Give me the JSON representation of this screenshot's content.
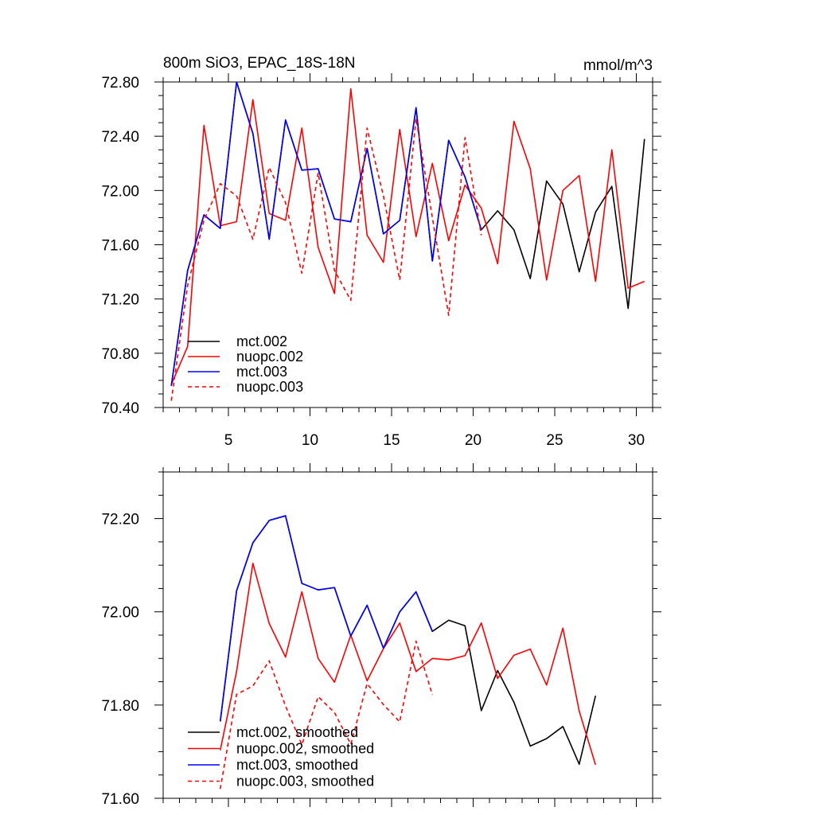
{
  "chart_data": [
    {
      "type": "line",
      "title": "800m SiO3, EPAC_18S-18N",
      "units": "mmol/m^3",
      "xlabel": "",
      "ylabel": "",
      "xlim": [
        1,
        31
      ],
      "ylim": [
        70.4,
        72.8
      ],
      "xticks": [
        5,
        10,
        15,
        20,
        25,
        30
      ],
      "yticks": [
        70.4,
        70.8,
        71.2,
        71.6,
        72.0,
        72.4,
        72.8
      ],
      "ytick_labels": [
        "70.40",
        "70.80",
        "71.20",
        "71.60",
        "72.00",
        "72.40",
        "72.80"
      ],
      "legend_position": "bottom-left",
      "series": [
        {
          "name": "mct.002",
          "color": "#000000",
          "dash": "solid",
          "x": [
            1.5,
            2.5,
            3.5,
            4.5,
            5.5,
            6.5,
            7.5,
            8.5,
            9.5,
            10.5,
            11.5,
            12.5,
            13.5,
            14.5,
            15.5,
            16.5,
            17.5,
            18.5,
            19.5,
            20.5,
            21.5,
            22.5,
            23.5,
            24.5,
            25.5,
            26.5,
            27.5,
            28.5,
            29.5,
            30.5
          ],
          "values": [
            70.56,
            71.41,
            71.82,
            71.72,
            72.8,
            72.42,
            71.64,
            72.52,
            72.15,
            72.16,
            71.79,
            71.77,
            72.31,
            71.68,
            71.78,
            72.61,
            71.48,
            72.37,
            72.1,
            71.71,
            71.85,
            71.71,
            71.35,
            72.07,
            71.9,
            71.4,
            71.84,
            72.03,
            71.13,
            72.38
          ]
        },
        {
          "name": "nuopc.002",
          "color": "#ff0000",
          "dash": "solid",
          "x": [
            1.5,
            2.5,
            3.5,
            4.5,
            5.5,
            6.5,
            7.5,
            8.5,
            9.5,
            10.5,
            11.5,
            12.5,
            13.5,
            14.5,
            15.5,
            16.5,
            17.5,
            18.5,
            19.5,
            20.5,
            21.5,
            22.5,
            23.5,
            24.5,
            25.5,
            26.5,
            27.5,
            28.5,
            29.5,
            30.5
          ],
          "values": [
            70.57,
            70.85,
            72.48,
            71.74,
            71.77,
            72.67,
            71.83,
            71.78,
            72.46,
            71.58,
            71.24,
            72.75,
            71.67,
            71.47,
            72.45,
            71.66,
            72.2,
            71.63,
            72.04,
            71.87,
            71.46,
            72.51,
            72.16,
            71.34,
            72.0,
            72.11,
            71.33,
            72.3,
            71.28,
            71.33
          ]
        },
        {
          "name": "mct.003",
          "color": "#0000ff",
          "dash": "solid",
          "x": [
            1.5,
            2.5,
            3.5,
            4.5,
            5.5,
            6.5,
            7.5,
            8.5,
            9.5,
            10.5,
            11.5,
            12.5,
            13.5,
            14.5,
            15.5,
            16.5,
            17.5,
            18.5,
            19.5,
            20.5
          ],
          "values": [
            70.56,
            71.41,
            71.82,
            71.72,
            72.8,
            72.42,
            71.64,
            72.52,
            72.15,
            72.16,
            71.79,
            71.77,
            72.31,
            71.68,
            71.78,
            72.61,
            71.48,
            72.37,
            72.1,
            71.71
          ]
        },
        {
          "name": "nuopc.003",
          "color": "#ff0000",
          "dash": "dashed",
          "x": [
            1.5,
            2.5,
            3.5,
            4.5,
            5.5,
            6.5,
            7.5,
            8.5,
            9.5,
            10.5,
            11.5,
            12.5,
            13.5,
            14.5,
            15.5,
            16.5,
            17.5,
            18.5,
            19.5,
            20.5
          ],
          "values": [
            70.45,
            71.3,
            71.78,
            72.05,
            71.96,
            71.64,
            72.17,
            71.91,
            71.39,
            72.13,
            71.41,
            71.19,
            72.46,
            71.96,
            71.34,
            72.53,
            71.8,
            71.08,
            72.39,
            71.67
          ]
        }
      ]
    },
    {
      "type": "line",
      "title": "",
      "xlabel": "",
      "ylabel": "",
      "xlim": [
        1,
        31
      ],
      "ylim": [
        71.6,
        72.3
      ],
      "xticks": [
        5,
        10,
        15,
        20,
        25,
        30
      ],
      "yticks": [
        71.6,
        71.8,
        72.0,
        72.2
      ],
      "ytick_labels": [
        "71.60",
        "71.80",
        "72.00",
        "72.20"
      ],
      "legend_position": "bottom-left",
      "series": [
        {
          "name": "mct.002, smoothed",
          "color": "#000000",
          "dash": "solid",
          "x": [
            4.5,
            5.5,
            6.5,
            7.5,
            8.5,
            9.5,
            10.5,
            11.5,
            12.5,
            13.5,
            14.5,
            15.5,
            16.5,
            17.5,
            18.5,
            19.5,
            20.5,
            21.5,
            22.5,
            23.5,
            24.5,
            25.5,
            26.5,
            27.5
          ],
          "values": [
            71.765,
            72.045,
            72.148,
            72.196,
            72.206,
            72.061,
            72.047,
            72.052,
            71.948,
            72.014,
            71.922,
            72.0,
            72.043,
            71.958,
            71.982,
            71.97,
            71.788,
            71.874,
            71.806,
            71.712,
            71.728,
            71.754,
            71.673,
            71.82
          ]
        },
        {
          "name": "nuopc.002, smoothed",
          "color": "#ff0000",
          "dash": "solid",
          "x": [
            4.5,
            5.5,
            6.5,
            7.5,
            8.5,
            9.5,
            10.5,
            11.5,
            12.5,
            13.5,
            14.5,
            15.5,
            16.5,
            17.5,
            18.5,
            19.5,
            20.5,
            21.5,
            22.5,
            23.5,
            24.5,
            25.5,
            26.5,
            27.5
          ],
          "values": [
            71.703,
            71.872,
            72.104,
            71.975,
            71.903,
            72.043,
            71.9,
            71.849,
            71.95,
            71.852,
            71.921,
            71.976,
            71.872,
            71.9,
            71.897,
            71.906,
            71.976,
            71.857,
            71.907,
            71.92,
            71.843,
            71.965,
            71.787,
            71.672
          ]
        },
        {
          "name": "mct.003, smoothed",
          "color": "#0000ff",
          "dash": "solid",
          "x": [
            4.5,
            5.5,
            6.5,
            7.5,
            8.5,
            9.5,
            10.5,
            11.5,
            12.5,
            13.5,
            14.5,
            15.5,
            16.5,
            17.5
          ],
          "values": [
            71.765,
            72.045,
            72.148,
            72.196,
            72.206,
            72.061,
            72.047,
            72.052,
            71.948,
            72.014,
            71.922,
            72.0,
            72.043,
            71.958
          ]
        },
        {
          "name": "nuopc.003, smoothed",
          "color": "#ff0000",
          "dash": "dashed",
          "x": [
            4.5,
            5.5,
            6.5,
            7.5,
            8.5,
            9.5,
            10.5,
            11.5,
            12.5,
            13.5,
            14.5,
            15.5,
            16.5,
            17.5
          ],
          "values": [
            71.62,
            71.823,
            71.841,
            71.895,
            71.798,
            71.715,
            71.818,
            71.784,
            71.716,
            71.846,
            71.801,
            71.764,
            71.937,
            71.822
          ]
        }
      ]
    }
  ]
}
